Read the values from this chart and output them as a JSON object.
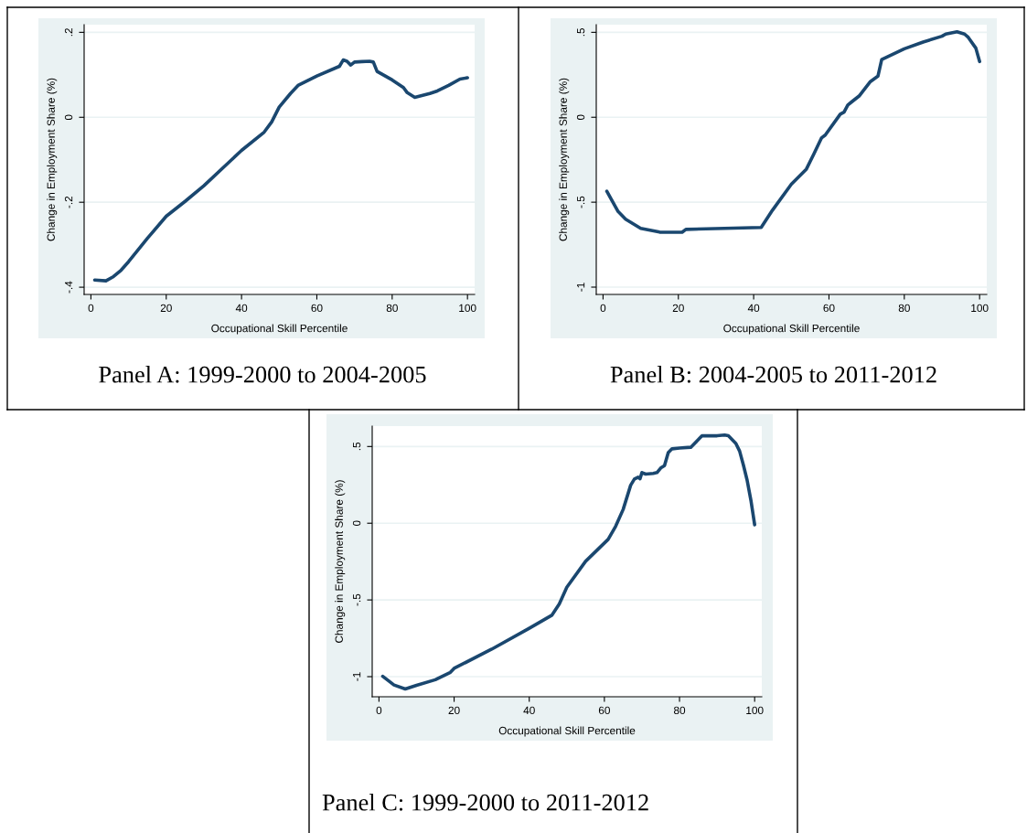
{
  "chart_data": [
    {
      "type": "line",
      "title": "Panel A: 1999-2000 to 2004-2005",
      "xlabel": "Occupational Skill Percentile",
      "ylabel": "Change in Employment Share (%)",
      "grid": "y",
      "xlim": [
        -1.8,
        101.9
      ],
      "xticks": [
        0,
        20,
        40,
        60,
        80,
        100
      ],
      "ylim": [
        -0.417,
        0.218
      ],
      "yticks": [
        {
          "value": -0.4,
          "label": "-.4"
        },
        {
          "value": -0.2,
          "label": "-.2"
        },
        0,
        {
          "value": 0.2,
          "label": ".2"
        }
      ],
      "series": [
        {
          "color": "#1a476f",
          "x": [
            1,
            4,
            6,
            8,
            10,
            15,
            20,
            25,
            30,
            40,
            46,
            48,
            50,
            53,
            55,
            60,
            66,
            67,
            68,
            69,
            70,
            72,
            74,
            75,
            76,
            80,
            83,
            84,
            86,
            90,
            92,
            95,
            98,
            100
          ],
          "values": [
            -0.383,
            -0.385,
            -0.375,
            -0.36,
            -0.34,
            -0.285,
            -0.233,
            -0.198,
            -0.161,
            -0.078,
            -0.035,
            -0.011,
            0.024,
            0.056,
            0.075,
            0.097,
            0.12,
            0.135,
            0.132,
            0.123,
            0.13,
            0.131,
            0.132,
            0.13,
            0.108,
            0.088,
            0.07,
            0.058,
            0.047,
            0.056,
            0.062,
            0.075,
            0.09,
            0.093
          ]
        }
      ]
    },
    {
      "type": "line",
      "title": "Panel B: 2004-2005 to 2011-2012",
      "xlabel": "Occupational Skill Percentile",
      "ylabel": "Change in Employment Share (%)",
      "grid": "y",
      "xlim": [
        -1.8,
        101.9
      ],
      "xticks": [
        0,
        20,
        40,
        60,
        80,
        100
      ],
      "ylim": [
        -1.043,
        0.545
      ],
      "yticks": [
        -1,
        {
          "value": -0.5,
          "label": "-.5"
        },
        0,
        {
          "value": 0.5,
          "label": ".5"
        }
      ],
      "series": [
        {
          "color": "#1a476f",
          "x": [
            1,
            4,
            6,
            10,
            15,
            21,
            22,
            42,
            45,
            50,
            54,
            56,
            58,
            59,
            63,
            64,
            65,
            66,
            68,
            71,
            73,
            74,
            80,
            85,
            90,
            91,
            94,
            96,
            97,
            99,
            100
          ],
          "values": [
            -0.435,
            -0.555,
            -0.6,
            -0.654,
            -0.676,
            -0.677,
            -0.66,
            -0.649,
            -0.547,
            -0.394,
            -0.305,
            -0.215,
            -0.122,
            -0.105,
            0.018,
            0.03,
            0.072,
            0.09,
            0.125,
            0.21,
            0.242,
            0.34,
            0.403,
            0.443,
            0.477,
            0.49,
            0.503,
            0.49,
            0.47,
            0.407,
            0.328
          ]
        }
      ]
    },
    {
      "type": "line",
      "title": "Panel C: 1999-2000 to 2011-2012",
      "xlabel": "Occupational Skill Percentile",
      "ylabel": "Change in Employment Share (%)",
      "grid": "y",
      "xlim": [
        -1.8,
        101.9
      ],
      "xticks": [
        0,
        20,
        40,
        60,
        80,
        100
      ],
      "ylim": [
        -1.131,
        0.633
      ],
      "yticks": [
        -1,
        {
          "value": -0.5,
          "label": "-.5"
        },
        0,
        {
          "value": 0.5,
          "label": ".5"
        }
      ],
      "series": [
        {
          "color": "#1a476f",
          "x": [
            1,
            4,
            7,
            10,
            15,
            19,
            20,
            30,
            40,
            46,
            48,
            50,
            55,
            61,
            63,
            65,
            67,
            68,
            69,
            69.5,
            70,
            71,
            73,
            74,
            75,
            76,
            77,
            78,
            80,
            83,
            86,
            90,
            92,
            93,
            95,
            96,
            97,
            98,
            99,
            100
          ],
          "values": [
            -0.998,
            -1.054,
            -1.08,
            -1.056,
            -1.02,
            -0.972,
            -0.946,
            -0.821,
            -0.685,
            -0.6,
            -0.526,
            -0.417,
            -0.248,
            -0.105,
            -0.02,
            0.09,
            0.248,
            0.288,
            0.3,
            0.29,
            0.33,
            0.32,
            0.325,
            0.33,
            0.36,
            0.375,
            0.46,
            0.485,
            0.49,
            0.495,
            0.57,
            0.57,
            0.575,
            0.57,
            0.52,
            0.47,
            0.38,
            0.28,
            0.15,
            -0.01
          ]
        }
      ]
    }
  ]
}
